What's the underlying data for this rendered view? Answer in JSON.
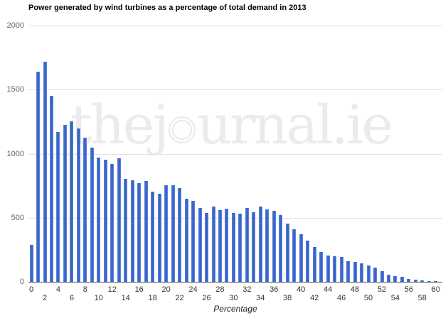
{
  "title": "Power generated by wind turbines as a percentage of total demand in 2013",
  "watermark": {
    "full_text": "thejournal.ie",
    "text_before_logo": "thej",
    "text_after_logo": "urnal.ie"
  },
  "chart_data": {
    "type": "bar",
    "title": "Power generated by wind turbines as a percentage of total demand in 2013",
    "xlabel": "Percentage",
    "ylabel": "",
    "x": [
      0,
      1,
      2,
      3,
      4,
      5,
      6,
      7,
      8,
      9,
      10,
      11,
      12,
      13,
      14,
      15,
      16,
      17,
      18,
      19,
      20,
      21,
      22,
      23,
      24,
      25,
      26,
      27,
      28,
      29,
      30,
      31,
      32,
      33,
      34,
      35,
      36,
      37,
      38,
      39,
      40,
      41,
      42,
      43,
      44,
      45,
      46,
      47,
      48,
      49,
      50,
      51,
      52,
      53,
      54,
      55,
      56,
      57,
      58,
      59,
      60
    ],
    "values": [
      290,
      1640,
      1720,
      1450,
      1170,
      1225,
      1250,
      1195,
      1125,
      1050,
      970,
      955,
      920,
      965,
      805,
      790,
      770,
      785,
      705,
      690,
      755,
      755,
      730,
      650,
      630,
      575,
      535,
      590,
      560,
      570,
      535,
      530,
      575,
      545,
      585,
      565,
      555,
      520,
      455,
      410,
      370,
      320,
      272,
      235,
      205,
      198,
      195,
      162,
      156,
      146,
      127,
      111,
      85,
      55,
      47,
      38,
      25,
      16,
      11,
      8,
      7
    ],
    "ylim": [
      0,
      2000
    ],
    "yticks": [
      0,
      500,
      1000,
      1500,
      2000
    ],
    "xticks": [
      0,
      2,
      4,
      6,
      8,
      10,
      12,
      14,
      16,
      18,
      20,
      22,
      24,
      26,
      28,
      30,
      32,
      34,
      36,
      38,
      40,
      42,
      44,
      46,
      48,
      50,
      52,
      54,
      56,
      58,
      60
    ],
    "grid": true,
    "legend": false,
    "bar_color": "#3a67cb",
    "gridline_color": "#e2e2e2",
    "axis_line_color": "#4d4d4d",
    "ytick_label_color": "#666666",
    "xtick_label_color": "#333333",
    "watermark_color": "#ebebeb"
  }
}
